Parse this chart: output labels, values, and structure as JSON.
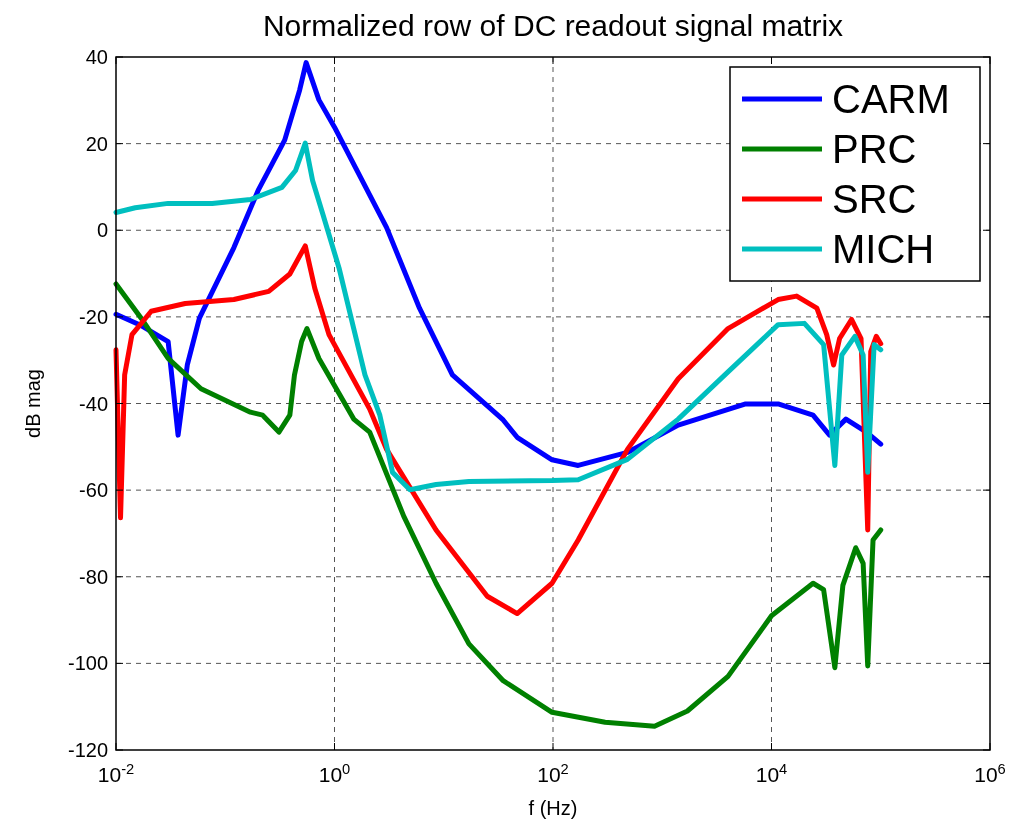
{
  "chart_data": {
    "type": "line",
    "title": "Normalized row of DC readout signal matrix",
    "xlabel": "f (Hz)",
    "ylabel": "dB mag",
    "log": "x",
    "grid": true,
    "legend": "top right",
    "line_style": "solid",
    "marker": "none",
    "xlim": [
      0.01,
      1000000
    ],
    "xticks": [
      {
        "value": 0.01,
        "label": "10$^{-2}$"
      },
      {
        "value": 1,
        "label": "10$^{0}$"
      },
      {
        "value": 100,
        "label": "10$^{2}$"
      },
      {
        "value": 10000,
        "label": "10$^{4}$"
      },
      {
        "value": 1000000,
        "label": "10$^{6}$"
      }
    ],
    "ylim": [
      -120,
      40
    ],
    "yticks": [
      -120,
      -100,
      -80,
      -60,
      -40,
      -20,
      0,
      20,
      40
    ],
    "series": [
      {
        "name": "CARM",
        "color": "#0000ff",
        "x": [
          0.01,
          0.017,
          0.03,
          0.037,
          0.045,
          0.058,
          0.12,
          0.2,
          0.35,
          0.48,
          0.55,
          0.72,
          1.0,
          3.0,
          6.0,
          12,
          35,
          47,
          98,
          170,
          480,
          1400,
          5800,
          11500,
          24000,
          34000,
          48000,
          74000,
          100000
        ],
        "values": [
          -19.4,
          -22,
          -25.7,
          -47.3,
          -31,
          -20.3,
          -4,
          9.2,
          20.8,
          32.4,
          38.7,
          30.1,
          23.8,
          0.6,
          -18,
          -33.4,
          -43.8,
          -47.8,
          -53,
          -54.3,
          -51.3,
          -45,
          -40.1,
          -40.1,
          -42.7,
          -47.3,
          -43.6,
          -46.6,
          -49.4
        ]
      },
      {
        "name": "PRC",
        "color": "#008000",
        "x": [
          0.01,
          0.017,
          0.03,
          0.06,
          0.17,
          0.22,
          0.31,
          0.39,
          0.43,
          0.5,
          0.56,
          0.72,
          1.5,
          2.1,
          4.3,
          8.5,
          17,
          35,
          98,
          300,
          850,
          1700,
          4000,
          10000,
          24000,
          30000,
          38000,
          45000,
          59000,
          69000,
          76000,
          85000,
          100000
        ],
        "values": [
          -12.4,
          -20.3,
          -29.6,
          -36.6,
          -42,
          -42.7,
          -46.6,
          -42.7,
          -33.4,
          -25.7,
          -22.7,
          -29.6,
          -43.6,
          -46.6,
          -66,
          -81.5,
          -95.5,
          -104,
          -111.3,
          -113.6,
          -114.5,
          -111,
          -103,
          -89,
          -81.5,
          -83,
          -101,
          -82,
          -73.3,
          -76.9,
          -100.6,
          -71.5,
          -69.2
        ]
      },
      {
        "name": "SRC",
        "color": "#ff0000",
        "x": [
          0.01,
          0.011,
          0.012,
          0.014,
          0.021,
          0.043,
          0.12,
          0.25,
          0.39,
          0.54,
          0.66,
          0.89,
          2.1,
          3.0,
          8.5,
          25,
          47,
          98,
          170,
          480,
          1400,
          4000,
          11500,
          17000,
          26000,
          32000,
          37000,
          42000,
          54000,
          66000,
          76000,
          81000,
          91000,
          100000
        ],
        "values": [
          -27.6,
          -66.4,
          -33.4,
          -24.1,
          -18.7,
          -16.9,
          -16,
          -14.1,
          -10.1,
          -3.6,
          -13.4,
          -24.1,
          -41.3,
          -50.6,
          -69.2,
          -84.5,
          -88.5,
          -81.5,
          -71.5,
          -50.6,
          -34.3,
          -22.7,
          -16,
          -15.2,
          -18,
          -24.1,
          -31.1,
          -25,
          -20.6,
          -25,
          -69.2,
          -28,
          -24.5,
          -26.2
        ]
      },
      {
        "name": "MICH",
        "color": "#00bfbf",
        "x": [
          0.01,
          0.015,
          0.03,
          0.076,
          0.17,
          0.33,
          0.44,
          0.54,
          0.63,
          0.78,
          1.1,
          1.5,
          1.9,
          2.6,
          3.4,
          4.9,
          8.5,
          17,
          98,
          170,
          480,
          1400,
          4000,
          11500,
          20000,
          30000,
          38000,
          44000,
          58000,
          69000,
          76000,
          87000,
          100000
        ],
        "values": [
          4.1,
          5.2,
          6.2,
          6.2,
          7.1,
          9.9,
          13.8,
          20.1,
          11.5,
          3.8,
          -8.7,
          -22.7,
          -33.4,
          -42.7,
          -55.9,
          -59.9,
          -58.7,
          -58,
          -57.8,
          -57.6,
          -52.9,
          -43.6,
          -32.7,
          -21.8,
          -21.5,
          -26.4,
          -54.3,
          -28.8,
          -24.5,
          -28.8,
          -55.9,
          -26.4,
          -27.6
        ]
      }
    ]
  }
}
